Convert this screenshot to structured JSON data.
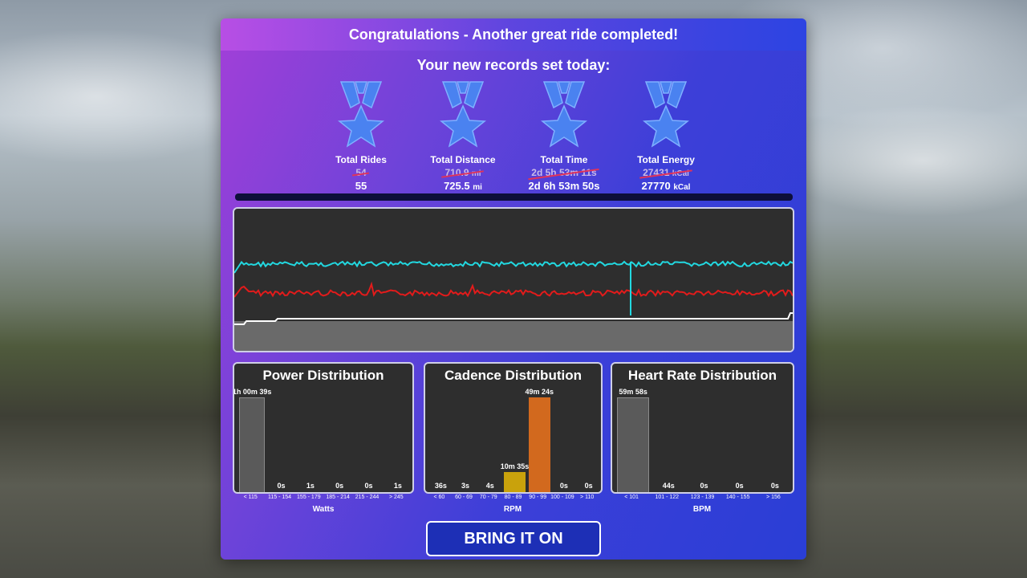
{
  "header": {
    "title": "Congratulations - Another great ride completed!"
  },
  "records": {
    "title": "Your new records set today:",
    "items": [
      {
        "label": "Total Rides",
        "old": "54",
        "old_unit": "",
        "new": "55",
        "new_unit": ""
      },
      {
        "label": "Total Distance",
        "old": "710.9",
        "old_unit": "mi",
        "new": "725.5",
        "new_unit": "mi"
      },
      {
        "label": "Total Time",
        "old": "2d 5h 53m 11s",
        "old_unit": "",
        "new": "2d 6h 53m 50s",
        "new_unit": ""
      },
      {
        "label": "Total Energy",
        "old": "27431",
        "old_unit": "kCal",
        "new": "27770",
        "new_unit": "kCal"
      }
    ]
  },
  "colors": {
    "cadence_line": "#22d8e0",
    "power_line": "#e21b1b",
    "elevation_line": "#ffffff",
    "cadence_highlight_bar": "#d2691e",
    "cadence_second_bar": "#c9a20c"
  },
  "power_distribution": {
    "title": "Power Distribution",
    "unit": "Watts",
    "categories": [
      "< 115",
      "115 - 154",
      "155 - 179",
      "185 - 214",
      "215 - 244",
      "> 245"
    ],
    "labels": [
      "1h 00m 39s",
      "0s",
      "1s",
      "0s",
      "0s",
      "1s"
    ],
    "fraction": [
      1.0,
      0,
      0,
      0,
      0,
      0
    ]
  },
  "cadence_distribution": {
    "title": "Cadence Distribution",
    "unit": "RPM",
    "categories": [
      "< 60",
      "60 - 69",
      "70 - 79",
      "80 - 89",
      "90 - 99",
      "100 - 109",
      "> 110"
    ],
    "labels": [
      "36s",
      "3s",
      "4s",
      "10m 35s",
      "49m 24s",
      "0s",
      "0s"
    ],
    "fraction": [
      0,
      0,
      0,
      0.214,
      1.0,
      0,
      0
    ]
  },
  "heart_rate_distribution": {
    "title": "Heart Rate Distribution",
    "unit": "BPM",
    "categories": [
      "< 101",
      "101 - 122",
      "123 - 139",
      "140 - 155",
      "> 156"
    ],
    "labels": [
      "59m 58s",
      "44s",
      "0s",
      "0s",
      "0s"
    ],
    "fraction": [
      1.0,
      0,
      0,
      0,
      0
    ]
  },
  "cta": {
    "label": "BRING IT ON"
  }
}
